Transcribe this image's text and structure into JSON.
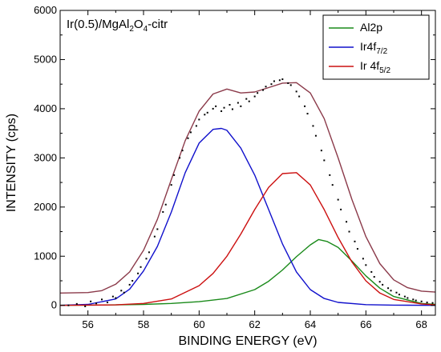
{
  "chart_data": {
    "type": "line",
    "annotation": {
      "main": "Ir(0.5)/MgAl",
      "sub1": "2",
      "mid": "O",
      "sub2": "4",
      "tail": "-citr"
    },
    "xlabel": "BINDING ENERGY (eV)",
    "ylabel": "INTENSITY (cps)",
    "xlim": [
      55,
      68.5
    ],
    "ylim": [
      -200,
      6000
    ],
    "x_ticks": [
      56,
      58,
      60,
      62,
      64,
      66,
      68
    ],
    "y_ticks": [
      0,
      1000,
      2000,
      3000,
      4000,
      5000,
      6000
    ],
    "legend_position": "top-right",
    "series": [
      {
        "id": "al2p",
        "name": "Al2p",
        "color": "#1a8a1a",
        "x": [
          55,
          56,
          57,
          58,
          59,
          60,
          61,
          62,
          62.5,
          63,
          63.5,
          64,
          64.3,
          64.6,
          65,
          65.5,
          66,
          66.5,
          67,
          68,
          68.5
        ],
        "y": [
          2,
          5,
          10,
          20,
          40,
          75,
          140,
          320,
          490,
          720,
          990,
          1230,
          1340,
          1300,
          1180,
          900,
          600,
          350,
          180,
          40,
          20
        ]
      },
      {
        "id": "ir4f72",
        "name": "Ir4f",
        "name_sub": "7/2",
        "color": "#1010cc",
        "x": [
          55,
          56,
          57,
          57.5,
          58,
          58.5,
          59,
          59.5,
          60,
          60.5,
          60.8,
          61,
          61.5,
          62,
          62.5,
          63,
          63.5,
          64,
          64.5,
          65,
          66,
          67,
          68.5
        ],
        "y": [
          0,
          20,
          130,
          330,
          700,
          1200,
          1900,
          2700,
          3300,
          3580,
          3600,
          3560,
          3200,
          2650,
          1950,
          1250,
          680,
          320,
          140,
          60,
          15,
          5,
          0
        ]
      },
      {
        "id": "ir4f52",
        "name": "Ir 4f",
        "name_sub": "5/2",
        "color": "#cc1010",
        "x": [
          55,
          57,
          58,
          59,
          60,
          60.5,
          61,
          61.5,
          62,
          62.5,
          63,
          63.5,
          64,
          64.5,
          65,
          65.5,
          66,
          66.5,
          67,
          68,
          68.5
        ],
        "y": [
          0,
          10,
          40,
          130,
          400,
          650,
          1000,
          1450,
          1950,
          2400,
          2680,
          2700,
          2450,
          1950,
          1380,
          880,
          500,
          250,
          120,
          30,
          10
        ]
      },
      {
        "id": "envelope",
        "name": "",
        "color": "#8b3a4a",
        "x": [
          55,
          56,
          56.5,
          57,
          57.5,
          58,
          58.5,
          59,
          59.5,
          60,
          60.5,
          61,
          61.5,
          62,
          62.5,
          63,
          63.5,
          64,
          64.5,
          65,
          65.5,
          66,
          66.5,
          67,
          67.5,
          68,
          68.5
        ],
        "y": [
          250,
          260,
          300,
          430,
          680,
          1120,
          1750,
          2560,
          3350,
          3950,
          4300,
          4400,
          4320,
          4340,
          4430,
          4520,
          4530,
          4320,
          3800,
          3000,
          2150,
          1400,
          850,
          520,
          360,
          290,
          270
        ]
      },
      {
        "id": "data",
        "name": "",
        "color": "#000000",
        "marker": "dot",
        "x": [
          55.3,
          55.6,
          55.9,
          56.1,
          56.3,
          56.5,
          56.7,
          56.9,
          57.0,
          57.2,
          57.3,
          57.5,
          57.6,
          57.8,
          57.9,
          58.1,
          58.2,
          58.4,
          58.5,
          58.7,
          58.8,
          59.0,
          59.1,
          59.3,
          59.4,
          59.6,
          59.7,
          59.9,
          60.0,
          60.2,
          60.3,
          60.5,
          60.6,
          60.8,
          60.9,
          61.1,
          61.2,
          61.4,
          61.5,
          61.7,
          61.8,
          62.0,
          62.1,
          62.3,
          62.4,
          62.6,
          62.7,
          62.9,
          63.0,
          63.2,
          63.3,
          63.5,
          63.6,
          63.8,
          63.9,
          64.1,
          64.2,
          64.4,
          64.5,
          64.7,
          64.8,
          65.0,
          65.1,
          65.3,
          65.4,
          65.6,
          65.7,
          65.9,
          66.0,
          66.2,
          66.3,
          66.5,
          66.6,
          66.8,
          66.9,
          67.1,
          67.2,
          67.4,
          67.5,
          67.7,
          67.8,
          68.0,
          68.2,
          68.4
        ],
        "y": [
          0,
          30,
          -20,
          80,
          40,
          120,
          60,
          180,
          150,
          300,
          260,
          420,
          500,
          650,
          780,
          950,
          1080,
          1400,
          1550,
          1900,
          2050,
          2450,
          2650,
          3000,
          3150,
          3400,
          3520,
          3650,
          3780,
          3880,
          3920,
          4000,
          4050,
          3950,
          4020,
          4080,
          3990,
          4120,
          4050,
          4200,
          4150,
          4250,
          4320,
          4380,
          4450,
          4500,
          4560,
          4580,
          4600,
          4520,
          4480,
          4350,
          4250,
          4050,
          3900,
          3650,
          3450,
          3150,
          2950,
          2650,
          2450,
          2150,
          1950,
          1700,
          1500,
          1300,
          1150,
          950,
          820,
          680,
          580,
          480,
          420,
          350,
          300,
          260,
          220,
          180,
          150,
          120,
          100,
          80,
          60,
          50
        ]
      }
    ]
  }
}
